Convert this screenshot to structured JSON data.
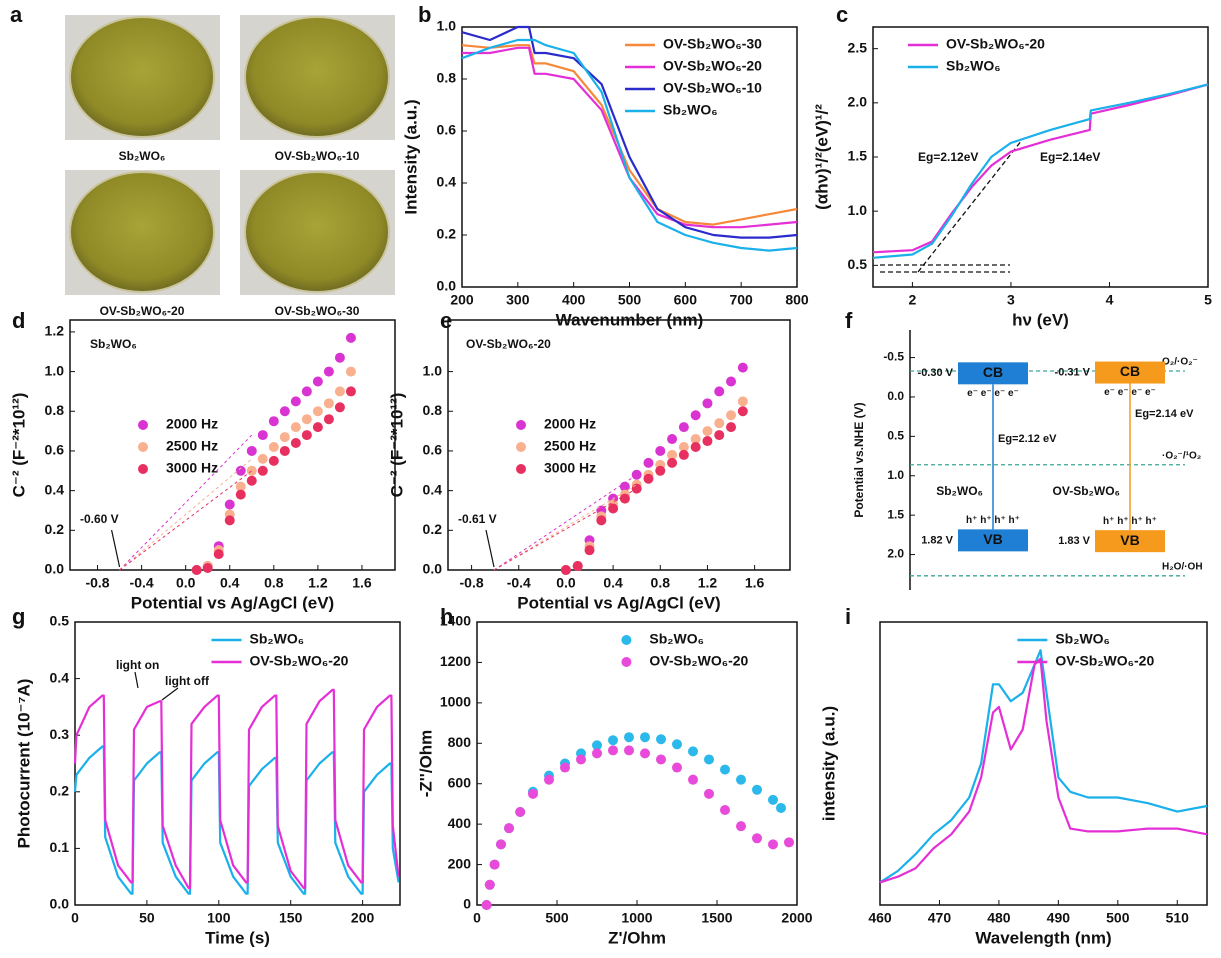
{
  "photos": {
    "label": "a",
    "items": [
      "Sb₂WO₆",
      "OV-Sb₂WO₆-10",
      "OV-Sb₂WO₆-20",
      "OV-Sb₂WO₆-30"
    ]
  },
  "chart_data": [
    {
      "type": "line",
      "label": "b",
      "xlabel": "Wavenumber (nm)",
      "ylabel": "Intensity (a.u.)",
      "x": [
        200,
        250,
        300,
        320,
        330,
        350,
        400,
        450,
        500,
        550,
        600,
        650,
        700,
        750,
        800
      ],
      "xlim": [
        200,
        800
      ],
      "xticks": [
        200,
        300,
        400,
        500,
        600,
        700,
        800
      ],
      "ylim": [
        0,
        1
      ],
      "yticks": [
        {
          "value": 0,
          "label": "0.0"
        },
        0.2,
        0.4,
        0.6,
        0.8,
        {
          "value": 1,
          "label": "1.0"
        }
      ],
      "legend": "upper right",
      "series": [
        {
          "name": "OV-Sb₂WO₆-30",
          "color": "#f5883a",
          "values": [
            0.93,
            0.92,
            0.93,
            0.93,
            0.86,
            0.86,
            0.83,
            0.7,
            0.45,
            0.3,
            0.25,
            0.24,
            0.26,
            0.28,
            0.3
          ]
        },
        {
          "name": "OV-Sb₂WO₆-20",
          "color": "#e52fd6",
          "values": [
            0.9,
            0.9,
            0.92,
            0.92,
            0.82,
            0.82,
            0.8,
            0.68,
            0.42,
            0.28,
            0.24,
            0.23,
            0.23,
            0.24,
            0.25
          ]
        },
        {
          "name": "OV-Sb₂WO₆-10",
          "color": "#2b2bcc",
          "values": [
            0.98,
            0.95,
            1.0,
            1.0,
            0.9,
            0.9,
            0.88,
            0.78,
            0.5,
            0.3,
            0.23,
            0.2,
            0.19,
            0.19,
            0.2
          ]
        },
        {
          "name": "Sb₂WO₆",
          "color": "#1ab0ea",
          "values": [
            0.88,
            0.92,
            0.95,
            0.95,
            0.95,
            0.93,
            0.9,
            0.75,
            0.42,
            0.25,
            0.2,
            0.17,
            0.15,
            0.14,
            0.15
          ]
        }
      ]
    },
    {
      "type": "line",
      "label": "c",
      "xlabel": "hν (eV)",
      "ylabel": "(αhν)¹/²(eV)¹/²",
      "x": [
        1.6,
        2.0,
        2.2,
        2.4,
        2.6,
        2.8,
        3.0,
        3.4,
        3.8,
        3.81,
        4.2,
        4.6,
        5.0
      ],
      "xlim": [
        1.6,
        5
      ],
      "xticks": [
        2,
        3,
        4,
        5
      ],
      "ylim": [
        0.3,
        2.7
      ],
      "yticks": [
        0.5,
        {
          "value": 1,
          "label": "1.0"
        },
        1.5,
        {
          "value": 2,
          "label": "2.0"
        },
        2.5
      ],
      "legend": "upper left",
      "annotations": [
        "Eg=2.12eV",
        "Eg=2.14eV"
      ],
      "series": [
        {
          "name": "OV-Sb₂WO₆-20",
          "color": "#e52fd6",
          "values": [
            0.62,
            0.64,
            0.72,
            0.98,
            1.22,
            1.42,
            1.55,
            1.66,
            1.75,
            1.9,
            1.98,
            2.07,
            2.17
          ]
        },
        {
          "name": "Sb₂WO₆",
          "color": "#1ab0ea",
          "values": [
            0.57,
            0.6,
            0.7,
            0.96,
            1.25,
            1.5,
            1.63,
            1.75,
            1.85,
            1.93,
            2.0,
            2.08,
            2.17
          ]
        }
      ]
    },
    {
      "type": "scatter",
      "label": "d",
      "xlabel": "Potential vs Ag/AgCl (eV)",
      "ylabel": "C⁻² (F⁻²*10¹²)",
      "x": [
        0.1,
        0.2,
        0.3,
        0.4,
        0.5,
        0.6,
        0.7,
        0.8,
        0.9,
        1.0,
        1.1,
        1.2,
        1.3,
        1.4,
        1.5
      ],
      "xlim": [
        -1.05,
        1.9
      ],
      "xticks": [
        -0.8,
        -0.4,
        {
          "value": 0,
          "label": "0.0"
        },
        0.4,
        0.8,
        1.2,
        1.6
      ],
      "ylim": [
        0,
        1.26
      ],
      "yticks": [
        {
          "value": 0,
          "label": "0.0"
        },
        0.2,
        0.4,
        0.6,
        0.8,
        {
          "value": 1,
          "label": "1.0"
        },
        1.2
      ],
      "legend": "center left",
      "annotations": [
        "Sb₂WO₆",
        "-0.60 V"
      ],
      "series": [
        {
          "name": "2000 Hz",
          "color": "#d933d1",
          "values": [
            0,
            0.02,
            0.12,
            0.33,
            0.5,
            0.6,
            0.68,
            0.75,
            0.8,
            0.85,
            0.9,
            0.95,
            1.0,
            1.07,
            1.17
          ]
        },
        {
          "name": "2500 Hz",
          "color": "#f8b08e",
          "values": [
            0,
            0.02,
            0.1,
            0.28,
            0.42,
            0.5,
            0.56,
            0.62,
            0.67,
            0.72,
            0.76,
            0.8,
            0.84,
            0.9,
            1.0
          ]
        },
        {
          "name": "3000 Hz",
          "color": "#e7305f",
          "values": [
            0,
            0.01,
            0.08,
            0.25,
            0.38,
            0.45,
            0.5,
            0.55,
            0.6,
            0.64,
            0.68,
            0.72,
            0.76,
            0.82,
            0.9
          ]
        }
      ]
    },
    {
      "type": "scatter",
      "label": "e",
      "xlabel": "Potential vs Ag/AgCl (eV)",
      "ylabel": "C⁻² (F⁻²*10¹²)",
      "x": [
        0,
        0.1,
        0.2,
        0.3,
        0.4,
        0.5,
        0.6,
        0.7,
        0.8,
        0.9,
        1.0,
        1.1,
        1.2,
        1.3,
        1.4,
        1.5
      ],
      "xlim": [
        -1.0,
        1.9
      ],
      "xticks": [
        -0.8,
        -0.4,
        {
          "value": 0,
          "label": "0.0"
        },
        0.4,
        0.8,
        1.2,
        1.6
      ],
      "ylim": [
        0,
        1.26
      ],
      "yticks": [
        {
          "value": 0,
          "label": "0.0"
        },
        0.2,
        0.4,
        0.6,
        0.8,
        {
          "value": 1,
          "label": "1.0"
        }
      ],
      "legend": "center left",
      "annotations": [
        "OV-Sb₂WO₆-20",
        "-0.61 V"
      ],
      "series": [
        {
          "name": "2000 Hz",
          "color": "#d933d1",
          "values": [
            0,
            0.02,
            0.15,
            0.3,
            0.36,
            0.42,
            0.48,
            0.54,
            0.6,
            0.66,
            0.72,
            0.78,
            0.84,
            0.9,
            0.95,
            1.02
          ]
        },
        {
          "name": "2500 Hz",
          "color": "#f8b08e",
          "values": [
            0,
            0.02,
            0.12,
            0.27,
            0.33,
            0.38,
            0.43,
            0.48,
            0.53,
            0.58,
            0.62,
            0.66,
            0.7,
            0.74,
            0.78,
            0.85
          ]
        },
        {
          "name": "3000 Hz",
          "color": "#e7305f",
          "values": [
            0,
            0.02,
            0.1,
            0.25,
            0.31,
            0.36,
            0.41,
            0.46,
            0.5,
            0.54,
            0.58,
            0.62,
            0.65,
            0.68,
            0.72,
            0.8
          ]
        }
      ]
    },
    {
      "type": "band",
      "label": "f",
      "ylabel": "Potential vs.NHE (V)",
      "ylim": [
        -0.85,
        2.45
      ],
      "yticks": [
        -0.5,
        {
          "value": 0,
          "label": "0.0"
        },
        0.5,
        {
          "value": 1,
          "label": "1.0"
        },
        1.5,
        {
          "value": 2,
          "label": "2.0"
        }
      ],
      "band_names": [
        "CB",
        "VB"
      ],
      "electrons": "e⁻ e⁻ e⁻ e⁻",
      "holes": "h⁺ h⁺ h⁺ h⁺",
      "redox_color": "#3aa896",
      "materials": [
        {
          "name": "Sb₂WO₆",
          "color": "#1f7fd4",
          "cb": -0.3,
          "vb": 1.82,
          "cb_label": "-0.30 V",
          "vb_label": "1.82 V",
          "eg_label": "Eg=2.12 eV"
        },
        {
          "name": "OV-Sb₂WO₆",
          "color": "#f59a1c",
          "cb": -0.31,
          "vb": 1.83,
          "cb_label": "-0.31 V",
          "vb_label": "1.83 V",
          "eg_label": "Eg=2.14 eV"
        }
      ],
      "redox": [
        {
          "label": "O₂/·O₂⁻",
          "value": -0.33
        },
        {
          "label": "·O₂⁻/¹O₂",
          "value": 0.86
        },
        {
          "label": "H₂O/·OH",
          "value": 2.27
        }
      ]
    },
    {
      "type": "line",
      "label": "g",
      "xlabel": "Time (s)",
      "ylabel": "Photocurrent (10⁻⁷A)",
      "x": [
        0,
        1,
        10,
        19,
        20,
        21,
        30,
        39,
        40,
        41,
        50,
        59,
        60,
        61,
        70,
        79,
        80,
        81,
        90,
        99,
        100,
        101,
        110,
        119,
        120,
        121,
        130,
        139,
        140,
        141,
        150,
        159,
        160,
        161,
        170,
        179,
        180,
        181,
        190,
        199,
        200,
        201,
        210,
        219,
        220,
        221,
        225
      ],
      "xlim": [
        0,
        226
      ],
      "xticks": [
        0,
        50,
        100,
        150,
        200
      ],
      "ylim": [
        0,
        0.5
      ],
      "yticks": [
        {
          "value": 0,
          "label": "0.0"
        },
        0.1,
        0.2,
        0.3,
        0.4,
        0.5
      ],
      "legend": "upper center",
      "annotations": [
        "light on",
        "light off"
      ],
      "series": [
        {
          "name": "Sb₂WO₆",
          "color": "#1ab0ea",
          "values": [
            0.2,
            0.23,
            0.26,
            0.28,
            0.28,
            0.12,
            0.05,
            0.02,
            0.02,
            0.22,
            0.25,
            0.27,
            0.27,
            0.11,
            0.05,
            0.02,
            0.02,
            0.22,
            0.25,
            0.27,
            0.27,
            0.11,
            0.05,
            0.02,
            0.02,
            0.21,
            0.24,
            0.26,
            0.26,
            0.11,
            0.05,
            0.02,
            0.02,
            0.22,
            0.25,
            0.27,
            0.27,
            0.11,
            0.05,
            0.02,
            0.02,
            0.2,
            0.23,
            0.25,
            0.25,
            0.1,
            0.04
          ]
        },
        {
          "name": "OV-Sb₂WO₆-20",
          "color": "#e52fd6",
          "values": [
            0.25,
            0.3,
            0.35,
            0.37,
            0.37,
            0.15,
            0.07,
            0.04,
            0.04,
            0.31,
            0.35,
            0.36,
            0.36,
            0.14,
            0.07,
            0.03,
            0.03,
            0.32,
            0.35,
            0.37,
            0.37,
            0.15,
            0.07,
            0.04,
            0.04,
            0.31,
            0.35,
            0.37,
            0.37,
            0.14,
            0.06,
            0.03,
            0.03,
            0.32,
            0.36,
            0.38,
            0.38,
            0.15,
            0.07,
            0.04,
            0.04,
            0.31,
            0.35,
            0.37,
            0.37,
            0.14,
            0.05
          ]
        }
      ]
    },
    {
      "type": "scatter",
      "label": "h",
      "xlabel": "Z'/Ohm",
      "ylabel": "-Z''/Ohm",
      "xlim": [
        0,
        2000
      ],
      "xticks": [
        0,
        500,
        1000,
        1500,
        2000
      ],
      "ylim": [
        0,
        1400
      ],
      "yticks": [
        0,
        200,
        400,
        600,
        800,
        1000,
        1200,
        1400
      ],
      "legend": "upper center",
      "series": [
        {
          "name": "Sb₂WO₆",
          "color": "#2bb8ea",
          "x": [
            60,
            80,
            110,
            150,
            200,
            270,
            350,
            450,
            550,
            650,
            750,
            850,
            950,
            1050,
            1150,
            1250,
            1350,
            1450,
            1550,
            1650,
            1750,
            1850,
            1900
          ],
          "values": [
            0,
            100,
            200,
            300,
            380,
            460,
            560,
            640,
            700,
            750,
            790,
            815,
            830,
            830,
            820,
            795,
            760,
            720,
            670,
            620,
            570,
            520,
            480
          ]
        },
        {
          "name": "OV-Sb₂WO₆-20",
          "color": "#e84ad9",
          "x": [
            60,
            80,
            110,
            150,
            200,
            270,
            350,
            450,
            550,
            650,
            750,
            850,
            950,
            1050,
            1150,
            1250,
            1350,
            1450,
            1550,
            1650,
            1750,
            1850,
            1950
          ],
          "values": [
            0,
            100,
            200,
            300,
            380,
            460,
            550,
            620,
            680,
            720,
            750,
            765,
            765,
            750,
            720,
            680,
            620,
            550,
            470,
            390,
            330,
            300,
            310
          ]
        }
      ]
    },
    {
      "type": "line",
      "label": "i",
      "xlabel": "Wavelength (nm)",
      "ylabel": "intensity (a.u.)",
      "x": [
        460,
        463,
        466,
        469,
        472,
        475,
        477,
        479,
        480,
        482,
        484,
        486,
        487,
        488,
        490,
        492,
        495,
        500,
        505,
        510,
        515
      ],
      "xlim": [
        460,
        515
      ],
      "xticks": [
        460,
        470,
        480,
        490,
        500,
        510
      ],
      "ylim": [
        0,
        1
      ],
      "legend": "upper center",
      "series": [
        {
          "name": "Sb₂WO₆",
          "color": "#1ab0ea",
          "values": [
            0.08,
            0.12,
            0.18,
            0.25,
            0.3,
            0.38,
            0.5,
            0.78,
            0.78,
            0.72,
            0.75,
            0.85,
            0.9,
            0.75,
            0.45,
            0.4,
            0.38,
            0.38,
            0.36,
            0.33,
            0.35
          ]
        },
        {
          "name": "OV-Sb₂WO₆-20",
          "color": "#e52fd6",
          "values": [
            0.08,
            0.1,
            0.13,
            0.2,
            0.25,
            0.33,
            0.45,
            0.68,
            0.7,
            0.55,
            0.62,
            0.85,
            0.87,
            0.65,
            0.38,
            0.27,
            0.26,
            0.26,
            0.27,
            0.27,
            0.25
          ]
        }
      ]
    }
  ]
}
